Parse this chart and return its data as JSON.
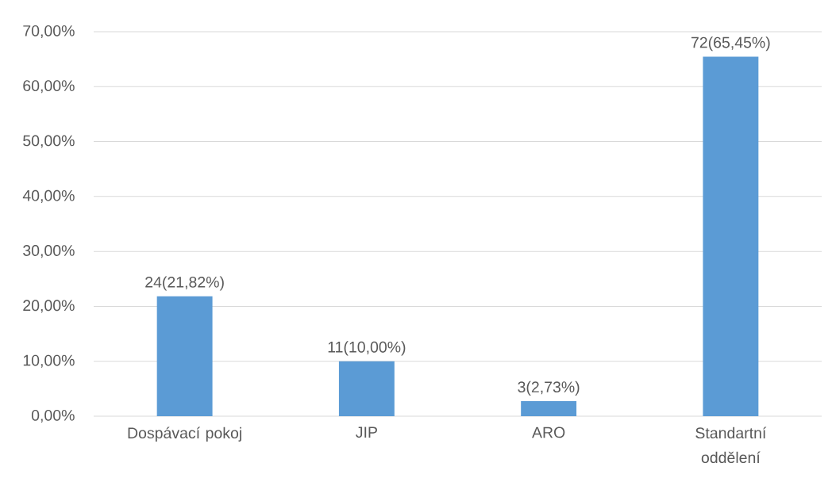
{
  "chart_data": {
    "type": "bar",
    "categories": [
      "Dospávací pokoj",
      "JIP",
      "ARO",
      "Standartní oddělení"
    ],
    "values": [
      21.82,
      10.0,
      2.73,
      65.45
    ],
    "value_labels": [
      "24(21,82%)",
      "11(10,00%)",
      "3(2,73%)",
      "72(65,45%)"
    ],
    "color": "#5b9bd5",
    "ylim": [
      0,
      70
    ],
    "yticks": [
      {
        "value": 0,
        "label": "0,00%"
      },
      {
        "value": 10,
        "label": "10,00%"
      },
      {
        "value": 20,
        "label": "20,00%"
      },
      {
        "value": 30,
        "label": "30,00%"
      },
      {
        "value": 40,
        "label": "40,00%"
      },
      {
        "value": 50,
        "label": "50,00%"
      },
      {
        "value": 60,
        "label": "60,00%"
      },
      {
        "value": 70,
        "label": "70,00%"
      }
    ],
    "grid": "y"
  }
}
